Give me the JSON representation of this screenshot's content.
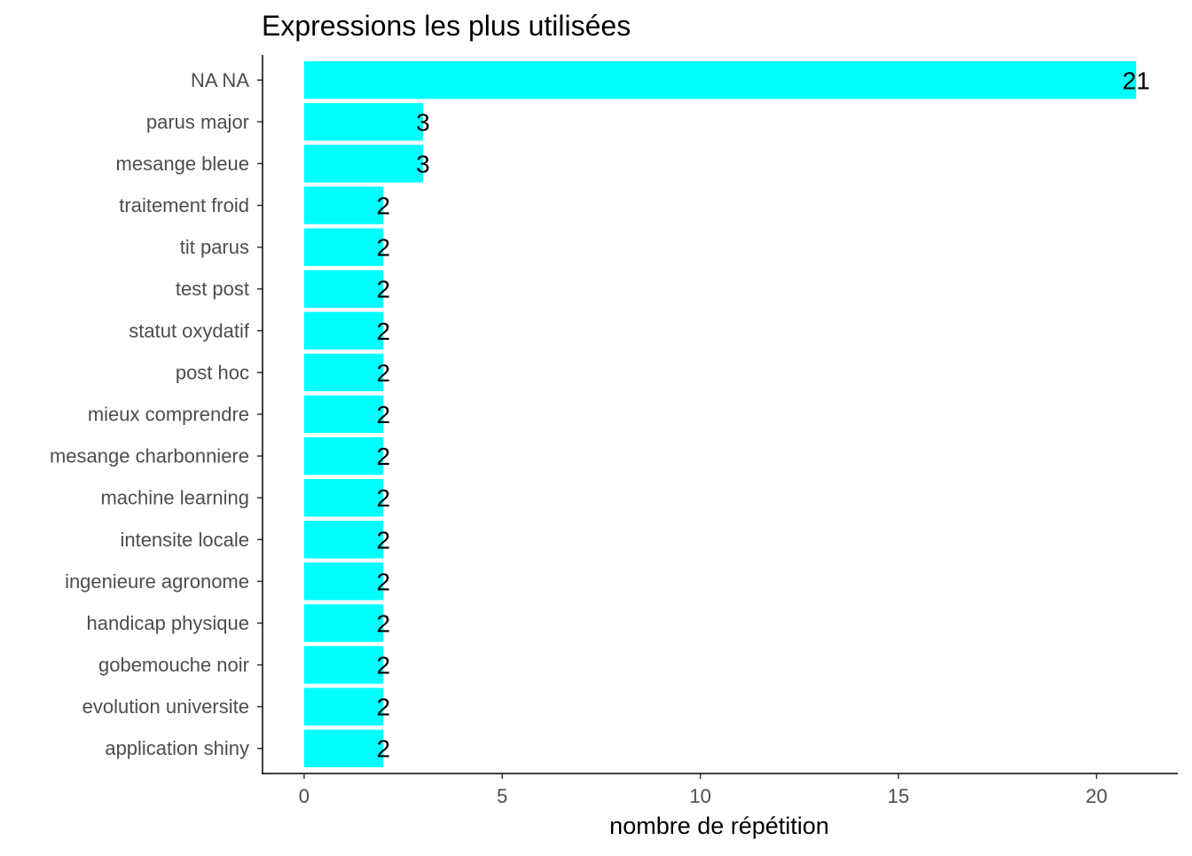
{
  "chart_data": {
    "type": "bar",
    "orientation": "horizontal",
    "title": "Expressions les plus utilisées",
    "xlabel": "nombre de répétition",
    "ylabel": "",
    "categories": [
      "NA NA",
      "parus major",
      "mesange bleue",
      "traitement froid",
      "tit parus",
      "test post",
      "statut oxydatif",
      "post hoc",
      "mieux comprendre",
      "mesange charbonniere",
      "machine learning",
      "intensite locale",
      "ingenieure agronome",
      "handicap physique",
      "gobemouche noir",
      "evolution universite",
      "application shiny"
    ],
    "values": [
      21,
      3,
      3,
      2,
      2,
      2,
      2,
      2,
      2,
      2,
      2,
      2,
      2,
      2,
      2,
      2,
      2
    ],
    "data_labels": [
      "21",
      "3",
      "3",
      "2",
      "2",
      "2",
      "2",
      "2",
      "2",
      "2",
      "2",
      "2",
      "2",
      "2",
      "2",
      "2",
      "2"
    ],
    "xticks": [
      0,
      5,
      10,
      15,
      20
    ],
    "xtick_labels": [
      "0",
      "5",
      "10",
      "15",
      "20"
    ],
    "xlim": [
      -1.05,
      22.05
    ],
    "bar_color": "#00FFFF",
    "grid": false,
    "legend": "none"
  }
}
